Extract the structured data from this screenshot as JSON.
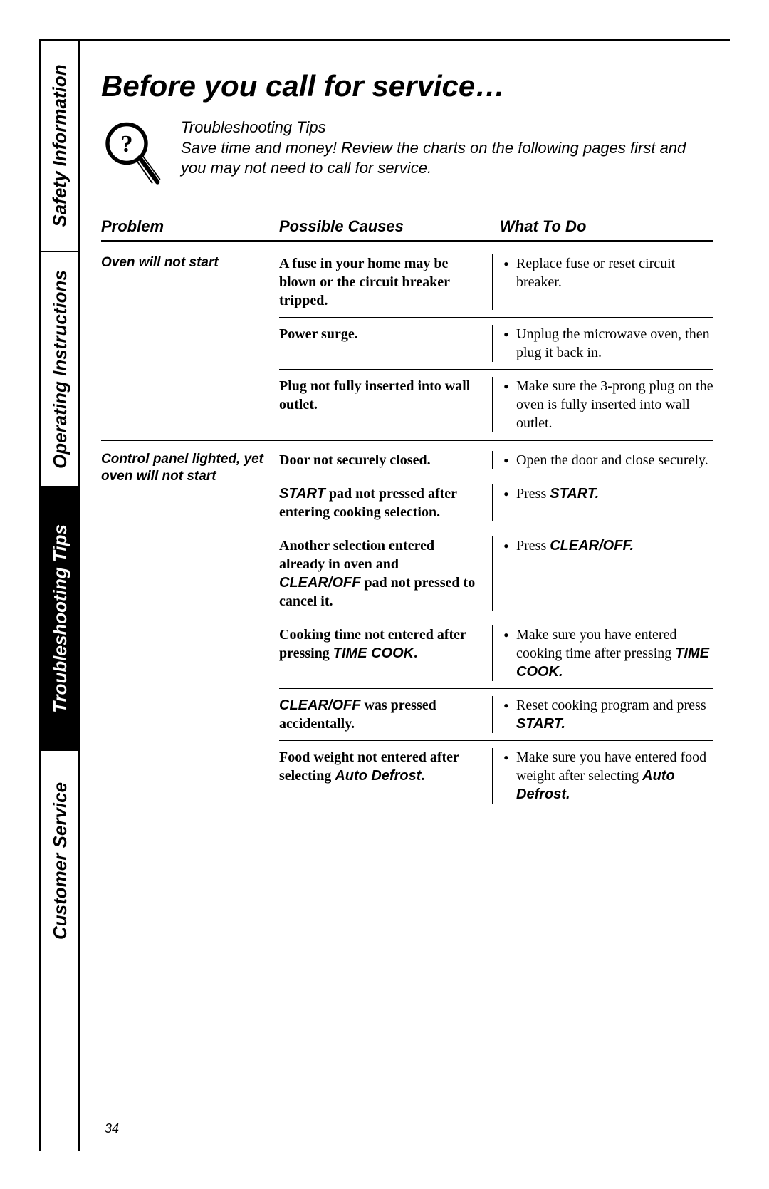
{
  "sidebar": {
    "tabs": [
      {
        "label": "Safety Information"
      },
      {
        "label": "Operating Instructions"
      },
      {
        "label": "Troubleshooting Tips"
      },
      {
        "label": "Customer Service"
      }
    ]
  },
  "title": "Before you call for service…",
  "intro": {
    "heading": "Troubleshooting Tips",
    "body": "Save time and money! Review the charts on the following pages first and you may not need to call for service."
  },
  "columns": {
    "problem": "Problem",
    "cause": "Possible Causes",
    "action": "What To Do"
  },
  "groups": [
    {
      "problem": "Oven will not start",
      "rows": [
        {
          "cause": "A fuse in your home may be blown or the circuit breaker tripped.",
          "action": "Replace fuse or reset circuit breaker."
        },
        {
          "cause": "Power surge.",
          "action": "Unplug the microwave oven, then plug it back in."
        },
        {
          "cause": "Plug not fully inserted into wall outlet.",
          "action": "Make sure the 3-prong plug on the oven is fully inserted into wall outlet."
        }
      ]
    },
    {
      "problem": "Control panel lighted, yet oven will not start",
      "rows": [
        {
          "cause": "Door not securely closed.",
          "action": "Open the door and close securely."
        },
        {
          "cause_html": "<span class='bolditalic'>START</span> pad not pressed after entering cooking selection.",
          "action_html": "Press <span class='bolditalic'>START.</span>"
        },
        {
          "cause_html": "Another selection entered already in oven and <span class='bolditalic'>CLEAR/OFF</span> pad not pressed to cancel it.",
          "action_html": "Press <span class='bolditalic'>CLEAR/OFF.</span>"
        },
        {
          "cause_html": "Cooking time not entered after pressing <span class='bolditalic'>TIME COOK</span>.",
          "action_html": "Make sure you have entered cooking time after pressing <span class='bolditalic'>TIME COOK.</span>"
        },
        {
          "cause_html": "<span class='bolditalic'>CLEAR/OFF</span> was pressed accidentally.",
          "action_html": "Reset cooking program and press <span class='bolditalic'>START.</span>"
        },
        {
          "cause_html": "Food weight not entered after selecting <span class='bolditalic'>Auto Defrost</span>.",
          "action_html": "Make sure you have entered food weight after selecting <span class='bolditalic'>Auto Defrost.</span>"
        }
      ]
    }
  ],
  "page_number": "34"
}
